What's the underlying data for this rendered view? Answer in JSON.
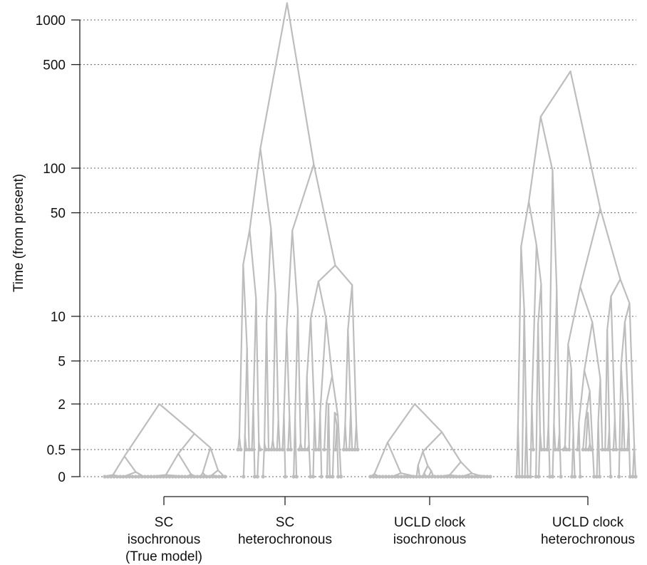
{
  "chart_data": {
    "type": "tree",
    "ylabel": "Time (from present)",
    "y_axis": {
      "scale": "piecewise (compressed near zero, log above)",
      "ticks": [
        "1000",
        "500",
        "100",
        "50",
        "10",
        "5",
        "2",
        "0.5",
        "0"
      ],
      "tick_values": [
        1000,
        500,
        100,
        50,
        10,
        5,
        2,
        0.5,
        0
      ],
      "grid": "dotted horizontal lines at each tick"
    },
    "categories": [
      {
        "line1": "SC",
        "line2": "isochronous",
        "line3": "(True model)",
        "root_age": 2,
        "tip_ages": "all 0"
      },
      {
        "line1": "SC",
        "line2": "heterochronous",
        "line3": "",
        "root_age": 1300,
        "tip_ages": "mixed 0 and 0.5"
      },
      {
        "line1": "UCLD clock",
        "line2": "isochronous",
        "line3": "",
        "root_age": 2,
        "tip_ages": "all 0"
      },
      {
        "line1": "UCLD clock",
        "line2": "heterochronous",
        "line3": "",
        "root_age": 450,
        "tip_ages": "mixed 0 and 0.5"
      }
    ],
    "colors": {
      "tree": "#bdbdbd",
      "grid": "#666666",
      "axis": "#222222"
    }
  }
}
